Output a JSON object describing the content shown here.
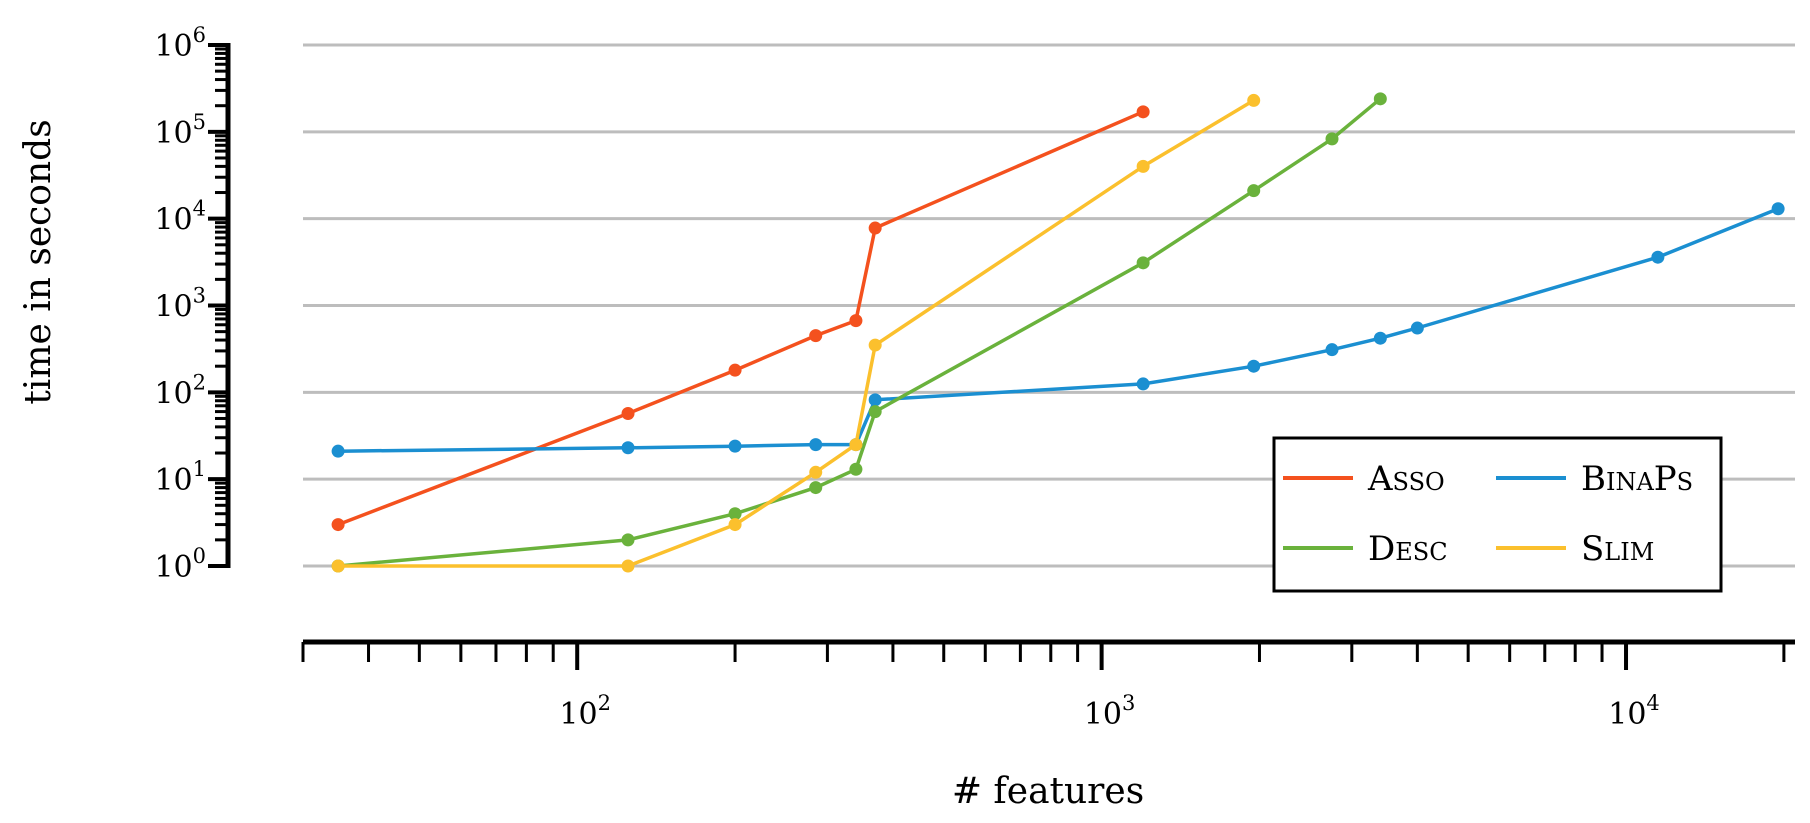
{
  "chart_data": {
    "type": "line",
    "title": "",
    "xlabel": "# features",
    "ylabel": "time in seconds",
    "xscale": "log",
    "yscale": "log",
    "xlim": [
      30,
      21000
    ],
    "ylim": [
      1,
      1000000
    ],
    "x_ticks": [
      {
        "value": 100,
        "base": "10",
        "exp": "2"
      },
      {
        "value": 1000,
        "base": "10",
        "exp": "3"
      },
      {
        "value": 10000,
        "base": "10",
        "exp": "4"
      }
    ],
    "y_ticks": [
      {
        "value": 1,
        "base": "10",
        "exp": "0"
      },
      {
        "value": 10,
        "base": "10",
        "exp": "1"
      },
      {
        "value": 100,
        "base": "10",
        "exp": "2"
      },
      {
        "value": 1000,
        "base": "10",
        "exp": "3"
      },
      {
        "value": 10000,
        "base": "10",
        "exp": "4"
      },
      {
        "value": 100000,
        "base": "10",
        "exp": "5"
      },
      {
        "value": 1000000,
        "base": "10",
        "exp": "6"
      }
    ],
    "grid": "horizontal",
    "legend_position": "lower-right",
    "series": [
      {
        "name": "Asso",
        "color": "#f4511e",
        "x": [
          35,
          125,
          200,
          285,
          340,
          370,
          1200
        ],
        "y": [
          3,
          57,
          180,
          450,
          670,
          7800,
          170000
        ]
      },
      {
        "name": "BinaPs",
        "color": "#1b8fd1",
        "x": [
          35,
          125,
          200,
          285,
          340,
          370,
          1200,
          1950,
          2750,
          3400,
          4000,
          11500,
          19500
        ],
        "y": [
          21,
          23,
          24,
          25,
          25,
          82,
          125,
          200,
          310,
          420,
          550,
          3600,
          13000
        ]
      },
      {
        "name": "Desc",
        "color": "#6ab23c",
        "x": [
          35,
          125,
          200,
          285,
          340,
          370,
          1200,
          1950,
          2750,
          3400
        ],
        "y": [
          1,
          2,
          4,
          8,
          13,
          60,
          3100,
          21000,
          83000,
          240000
        ]
      },
      {
        "name": "Slim",
        "color": "#fbc02d",
        "x": [
          35,
          125,
          200,
          285,
          340,
          370,
          1200,
          1950
        ],
        "y": [
          1,
          1,
          3,
          12,
          25,
          350,
          40000,
          230000
        ]
      }
    ]
  }
}
